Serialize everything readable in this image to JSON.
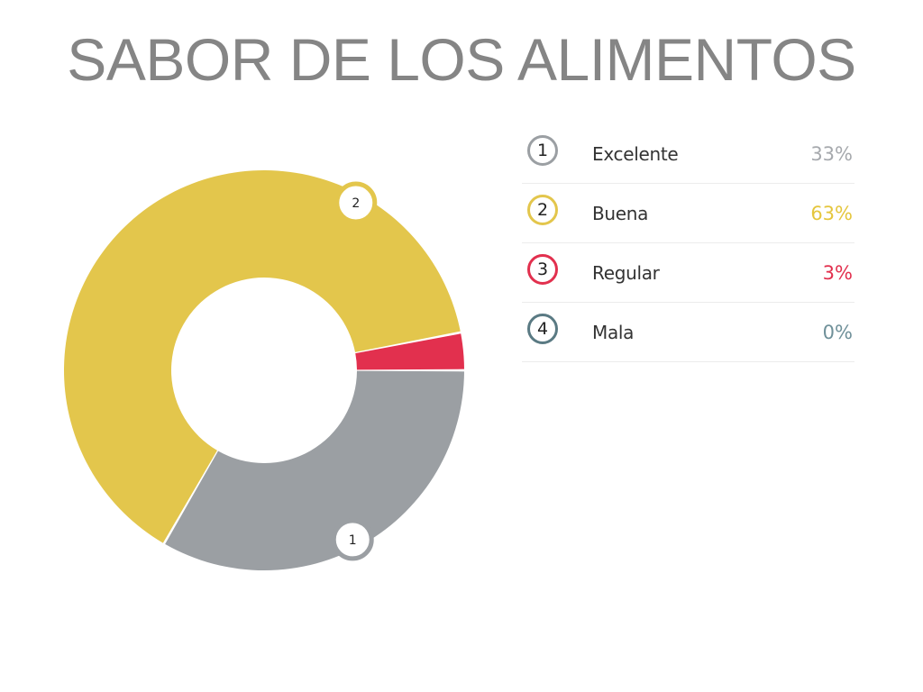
{
  "page": {
    "title": "SABOR DE LOS ALIMENTOS"
  },
  "chart_data": {
    "type": "pie",
    "title": "SABOR DE LOS ALIMENTOS",
    "style": "donut",
    "categories": [
      "Excelente",
      "Buena",
      "Regular",
      "Mala"
    ],
    "values": [
      33,
      63,
      3,
      0
    ],
    "unit": "%",
    "markers": [
      "1",
      "2",
      "3",
      "4"
    ],
    "colors": [
      "#9b9fa3",
      "#e3c64c",
      "#e2304e",
      "#5a7a83"
    ],
    "legend_position": "right"
  },
  "legend": [
    {
      "marker": "1",
      "label": "Excelente",
      "value_text": "33%",
      "color": "#9b9fa3",
      "text_color": "#a6a9ad"
    },
    {
      "marker": "2",
      "label": "Buena",
      "value_text": "63%",
      "color": "#e3c64c",
      "text_color": "#e5c63d"
    },
    {
      "marker": "3",
      "label": "Regular",
      "value_text": "3%",
      "color": "#e2304e",
      "text_color": "#e2304e"
    },
    {
      "marker": "4",
      "label": "Mala",
      "value_text": "0%",
      "color": "#5a7a83",
      "text_color": "#6f9099"
    }
  ]
}
